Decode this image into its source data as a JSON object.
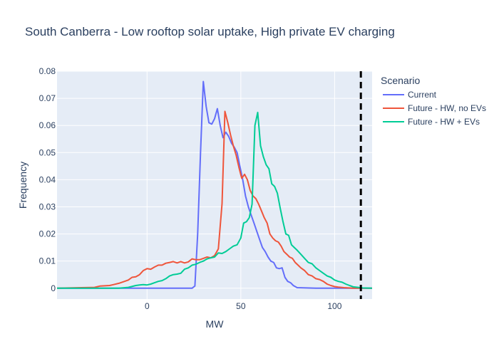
{
  "chart_data": {
    "type": "line",
    "title": "South Canberra - Low rooftop solar uptake, High private EV charging",
    "xlabel": "MW",
    "ylabel": "Frequency",
    "xlim": [
      -48,
      120
    ],
    "ylim": [
      -0.004,
      0.08
    ],
    "xticks": [
      0,
      50,
      100
    ],
    "xtick_labels": [
      "0",
      "50",
      "100"
    ],
    "yticks": [
      0,
      0.01,
      0.02,
      0.03,
      0.04,
      0.05,
      0.06,
      0.07,
      0.08
    ],
    "ytick_labels": [
      "0",
      "0.01",
      "0.02",
      "0.03",
      "0.04",
      "0.05",
      "0.06",
      "0.07",
      "0.08"
    ],
    "legend_title": "Scenario",
    "legend_position": "right",
    "grid": true,
    "vline": {
      "x": 114,
      "style": "dashed",
      "color": "#000000"
    },
    "series": [
      {
        "name": "Current",
        "color": "#636efa",
        "x": [
          -48,
          -30,
          -15,
          0,
          15,
          24,
          25.5,
          27,
          28.5,
          30,
          31.5,
          33,
          34.5,
          36,
          37.5,
          39,
          40.5,
          42,
          43.5,
          45,
          46.5,
          48,
          49.5,
          51,
          52.5,
          54,
          55.5,
          57,
          58.5,
          60,
          61.5,
          63,
          64.5,
          66,
          67.5,
          69,
          70.5,
          72,
          73.5,
          75,
          76.5,
          78,
          80,
          85,
          90,
          100,
          120
        ],
        "y": [
          0,
          0,
          0,
          0,
          0,
          0,
          0.0008,
          0.02,
          0.05,
          0.0762,
          0.067,
          0.061,
          0.0605,
          0.0625,
          0.0662,
          0.06,
          0.0555,
          0.0575,
          0.056,
          0.0535,
          0.052,
          0.05,
          0.045,
          0.04,
          0.034,
          0.03,
          0.027,
          0.024,
          0.021,
          0.018,
          0.015,
          0.0135,
          0.0115,
          0.01,
          0.0095,
          0.0075,
          0.0072,
          0.0075,
          0.004,
          0.0025,
          0.002,
          0.001,
          0.0002,
          0.0001,
          0,
          0,
          0
        ]
      },
      {
        "name": "Future - HW, no EVs",
        "color": "#ef553b",
        "x": [
          -48,
          -35,
          -28,
          -25,
          -20,
          -18,
          -15,
          -12,
          -10,
          -8,
          -6,
          -4,
          -2,
          0,
          2,
          4,
          6,
          8,
          10,
          12,
          14,
          16,
          18,
          20,
          22,
          24,
          26,
          28,
          30,
          32,
          34,
          36,
          38,
          40,
          41.5,
          43,
          44.5,
          46,
          47.5,
          49,
          50.5,
          52,
          53.5,
          55,
          56.5,
          58,
          59.5,
          61,
          62.5,
          64,
          65.5,
          67,
          68.5,
          70,
          71.5,
          73,
          74.5,
          76,
          77.5,
          79,
          80.5,
          82,
          84,
          86,
          88,
          90,
          92,
          94,
          96,
          98,
          100,
          102,
          105,
          110,
          120
        ],
        "y": [
          0,
          0.0002,
          0.0003,
          0.0008,
          0.001,
          0.0013,
          0.0018,
          0.0025,
          0.003,
          0.004,
          0.0042,
          0.005,
          0.0065,
          0.0072,
          0.007,
          0.0078,
          0.0085,
          0.0085,
          0.0092,
          0.0095,
          0.0098,
          0.0093,
          0.0098,
          0.0093,
          0.0097,
          0.0108,
          0.0105,
          0.0105,
          0.011,
          0.0115,
          0.0112,
          0.012,
          0.0145,
          0.0312,
          0.0652,
          0.0612,
          0.0565,
          0.0525,
          0.049,
          0.0445,
          0.0405,
          0.042,
          0.04,
          0.036,
          0.034,
          0.033,
          0.031,
          0.0285,
          0.026,
          0.024,
          0.02,
          0.0185,
          0.0175,
          0.017,
          0.0155,
          0.0135,
          0.0125,
          0.0115,
          0.011,
          0.0095,
          0.0085,
          0.0075,
          0.0065,
          0.005,
          0.0045,
          0.0035,
          0.0032,
          0.0025,
          0.0015,
          0.001,
          0.0006,
          0.0004,
          0.0002,
          0,
          0
        ]
      },
      {
        "name": "Future - HW + EVs",
        "color": "#00cc96",
        "x": [
          -48,
          -15,
          -10,
          -6,
          -4,
          -2,
          0,
          2,
          4,
          6,
          8,
          10,
          12,
          14,
          16,
          18,
          20,
          22,
          24,
          26,
          28,
          30,
          32,
          34,
          36,
          38,
          40,
          42,
          44,
          46,
          48,
          50,
          51.5,
          53,
          54.5,
          56,
          57.5,
          59,
          60.5,
          62,
          63.5,
          65,
          66.5,
          68,
          69.5,
          71,
          72.5,
          74,
          75.5,
          77,
          78.5,
          80,
          82,
          84,
          86,
          88,
          90,
          92,
          94,
          96,
          98,
          100,
          102,
          104,
          106,
          108,
          110,
          115,
          120
        ],
        "y": [
          0,
          0,
          0.0003,
          0.001,
          0.0012,
          0.0013,
          0.0012,
          0.0015,
          0.002,
          0.0025,
          0.0028,
          0.0035,
          0.0045,
          0.005,
          0.0052,
          0.0055,
          0.007,
          0.0075,
          0.0085,
          0.0088,
          0.0095,
          0.01,
          0.0108,
          0.0112,
          0.0115,
          0.013,
          0.0128,
          0.0135,
          0.0145,
          0.0155,
          0.016,
          0.0185,
          0.024,
          0.0245,
          0.026,
          0.031,
          0.06,
          0.0648,
          0.0525,
          0.0485,
          0.0455,
          0.044,
          0.0385,
          0.0375,
          0.035,
          0.0295,
          0.0245,
          0.02,
          0.0195,
          0.016,
          0.015,
          0.014,
          0.0125,
          0.011,
          0.0095,
          0.009,
          0.0075,
          0.0065,
          0.0055,
          0.0045,
          0.004,
          0.003,
          0.0025,
          0.0022,
          0.0015,
          0.001,
          0.0005,
          0.0001,
          0
        ]
      }
    ]
  }
}
